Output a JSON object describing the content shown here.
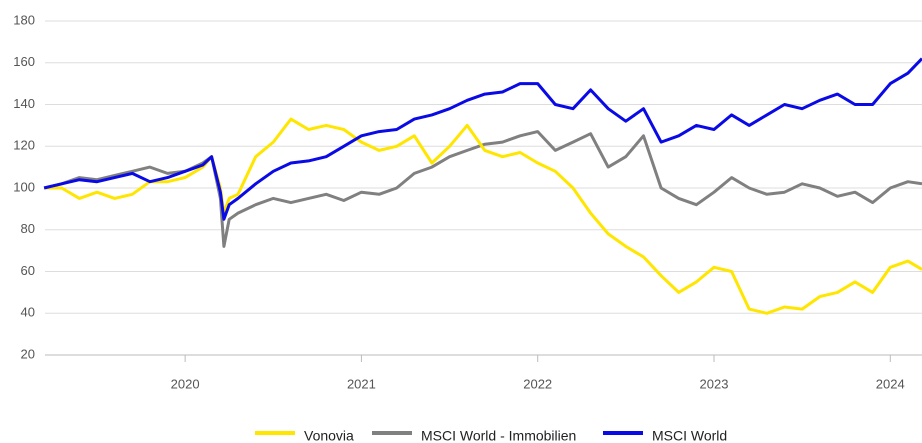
{
  "chart_data": {
    "type": "line",
    "x": [
      2019.2,
      2019.3,
      2019.4,
      2019.5,
      2019.6,
      2019.7,
      2019.8,
      2019.9,
      2020.0,
      2020.1,
      2020.15,
      2020.2,
      2020.22,
      2020.25,
      2020.3,
      2020.4,
      2020.5,
      2020.6,
      2020.7,
      2020.8,
      2020.9,
      2021.0,
      2021.1,
      2021.2,
      2021.3,
      2021.4,
      2021.5,
      2021.6,
      2021.7,
      2021.8,
      2021.9,
      2022.0,
      2022.1,
      2022.2,
      2022.3,
      2022.4,
      2022.5,
      2022.6,
      2022.7,
      2022.8,
      2022.9,
      2023.0,
      2023.1,
      2023.2,
      2023.3,
      2023.4,
      2023.5,
      2023.6,
      2023.7,
      2023.8,
      2023.9,
      2024.0,
      2024.1,
      2024.18
    ],
    "series": [
      {
        "name": "Vonovia",
        "color": "#ffe600",
        "values": [
          100,
          100,
          95,
          98,
          95,
          97,
          103,
          103,
          105,
          110,
          115,
          100,
          88,
          95,
          97,
          115,
          122,
          133,
          128,
          130,
          128,
          122,
          118,
          120,
          125,
          112,
          120,
          130,
          118,
          115,
          117,
          112,
          108,
          100,
          88,
          78,
          72,
          67,
          58,
          50,
          55,
          62,
          60,
          42,
          40,
          43,
          42,
          48,
          50,
          55,
          50,
          62,
          65,
          61
        ]
      },
      {
        "name": "MSCI World - Immobilien",
        "color": "#808080",
        "values": [
          100,
          102,
          105,
          104,
          106,
          108,
          110,
          107,
          108,
          112,
          115,
          95,
          72,
          85,
          88,
          92,
          95,
          93,
          95,
          97,
          94,
          98,
          97,
          100,
          107,
          110,
          115,
          118,
          121,
          122,
          125,
          127,
          118,
          122,
          126,
          110,
          115,
          125,
          100,
          95,
          92,
          98,
          105,
          100,
          97,
          98,
          102,
          100,
          96,
          98,
          93,
          100,
          103,
          102
        ]
      },
      {
        "name": "MSCI World",
        "color": "#0a0ae6",
        "values": [
          100,
          102,
          104,
          103,
          105,
          107,
          103,
          105,
          108,
          111,
          115,
          98,
          85,
          92,
          95,
          102,
          108,
          112,
          113,
          115,
          120,
          125,
          127,
          128,
          133,
          135,
          138,
          142,
          145,
          146,
          150,
          150,
          140,
          138,
          147,
          138,
          132,
          138,
          122,
          125,
          130,
          128,
          135,
          130,
          135,
          140,
          138,
          142,
          145,
          140,
          140,
          150,
          155,
          162
        ]
      }
    ],
    "xlim": [
      2019.205,
      2024.18
    ],
    "xticks": [
      2020,
      2021,
      2022,
      2023,
      2024
    ],
    "ylim": [
      20,
      180
    ],
    "yticks": [
      20,
      40,
      60,
      80,
      100,
      120,
      140,
      160,
      180
    ],
    "grid": true
  }
}
